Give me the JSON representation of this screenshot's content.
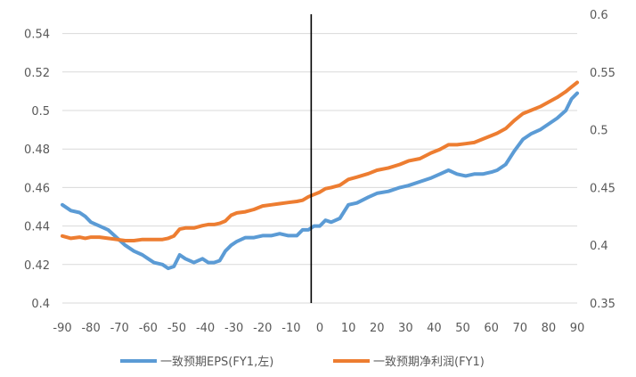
{
  "chart_data": {
    "type": "line",
    "title": "",
    "xlabel": "",
    "ylabel": "",
    "xlim": [
      -90,
      90
    ],
    "xticks": [
      -90,
      -80,
      -70,
      -60,
      -50,
      -40,
      -30,
      -20,
      -10,
      0,
      10,
      20,
      30,
      40,
      50,
      60,
      70,
      80,
      90
    ],
    "y_left": {
      "lim": [
        0.4,
        0.55
      ],
      "ticks": [
        "0.4",
        "0.42",
        "0.44",
        "0.46",
        "0.48",
        "0.5",
        "0.52",
        "0.54"
      ]
    },
    "y_right": {
      "lim": [
        0.35,
        0.6
      ],
      "ticks": [
        "0.35",
        "0.4",
        "0.45",
        "0.5",
        "0.55",
        "0.6"
      ]
    },
    "vertical_line_x": -3,
    "grid": "horizontal",
    "legend_position": "bottom",
    "colors": {
      "series_eps": "#5B9BD5",
      "series_profit": "#ED7D31",
      "grid": "#d9d9d9",
      "marker_line": "#000000"
    },
    "series": [
      {
        "name": "一致预期EPS(FY1,左)",
        "axis": "left",
        "x": [
          -90,
          -87,
          -84,
          -82,
          -80,
          -77,
          -74,
          -71,
          -68,
          -65,
          -62,
          -60,
          -58,
          -55,
          -53,
          -51,
          -49,
          -47,
          -44,
          -41,
          -39,
          -37,
          -35,
          -33,
          -31,
          -29,
          -26,
          -23,
          -20,
          -17,
          -14,
          -11,
          -8,
          -6,
          -4,
          -2,
          0,
          2,
          4,
          7,
          10,
          13,
          17,
          20,
          24,
          28,
          31,
          35,
          39,
          42,
          45,
          48,
          51,
          54,
          57,
          60,
          62,
          65,
          68,
          71,
          74,
          77,
          80,
          83,
          86,
          88,
          90
        ],
        "y": [
          0.451,
          0.448,
          0.447,
          0.445,
          0.442,
          0.44,
          0.438,
          0.434,
          0.43,
          0.427,
          0.425,
          0.423,
          0.421,
          0.42,
          0.418,
          0.419,
          0.425,
          0.423,
          0.421,
          0.423,
          0.421,
          0.421,
          0.422,
          0.427,
          0.43,
          0.432,
          0.434,
          0.434,
          0.435,
          0.435,
          0.436,
          0.435,
          0.435,
          0.438,
          0.438,
          0.44,
          0.44,
          0.443,
          0.442,
          0.444,
          0.451,
          0.452,
          0.455,
          0.457,
          0.458,
          0.46,
          0.461,
          0.463,
          0.465,
          0.467,
          0.469,
          0.467,
          0.466,
          0.467,
          0.467,
          0.468,
          0.469,
          0.472,
          0.479,
          0.485,
          0.488,
          0.49,
          0.493,
          0.496,
          0.5,
          0.506,
          0.509
        ]
      },
      {
        "name": "一致预期净利润(FY1)",
        "axis": "right",
        "x": [
          -90,
          -87,
          -84,
          -82,
          -80,
          -77,
          -74,
          -71,
          -68,
          -65,
          -62,
          -60,
          -58,
          -55,
          -53,
          -51,
          -49,
          -47,
          -44,
          -41,
          -39,
          -37,
          -35,
          -33,
          -31,
          -29,
          -26,
          -23,
          -20,
          -17,
          -14,
          -11,
          -8,
          -6,
          -4,
          -2,
          0,
          2,
          4,
          7,
          10,
          13,
          17,
          20,
          24,
          28,
          31,
          35,
          39,
          42,
          45,
          48,
          51,
          54,
          57,
          60,
          62,
          65,
          68,
          71,
          74,
          77,
          80,
          83,
          86,
          88,
          90
        ],
        "y": [
          0.408,
          0.406,
          0.407,
          0.406,
          0.407,
          0.407,
          0.406,
          0.405,
          0.404,
          0.404,
          0.405,
          0.405,
          0.405,
          0.405,
          0.406,
          0.408,
          0.414,
          0.415,
          0.415,
          0.417,
          0.418,
          0.418,
          0.419,
          0.421,
          0.426,
          0.428,
          0.429,
          0.431,
          0.434,
          0.435,
          0.436,
          0.437,
          0.438,
          0.439,
          0.442,
          0.444,
          0.446,
          0.449,
          0.45,
          0.452,
          0.457,
          0.459,
          0.462,
          0.465,
          0.467,
          0.47,
          0.473,
          0.475,
          0.48,
          0.483,
          0.487,
          0.487,
          0.488,
          0.489,
          0.492,
          0.495,
          0.497,
          0.501,
          0.508,
          0.514,
          0.517,
          0.52,
          0.524,
          0.528,
          0.533,
          0.537,
          0.541
        ]
      }
    ]
  }
}
